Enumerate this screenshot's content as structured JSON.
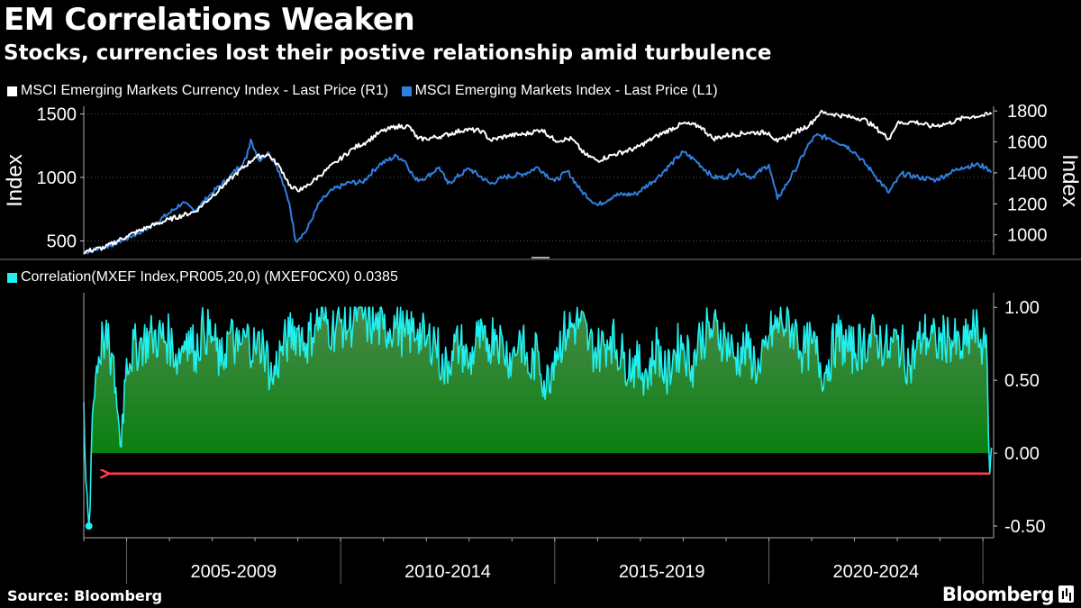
{
  "header": {
    "title": "EM Correlations Weaken",
    "subtitle": "Stocks, currencies lost their postive relationship amid turbulence"
  },
  "legend_top": [
    {
      "label": "MSCI Emerging Markets Currency Index - Last Price (R1)",
      "color": "#ffffff"
    },
    {
      "label": "MSCI Emerging Markets Index - Last Price (L1)",
      "color": "#2f7fe0"
    }
  ],
  "legend_bottom": [
    {
      "label": "Correlation(MXEF Index,PR005,20,0) (MXEF0CX0) 0.0385",
      "color": "#22f0f0"
    }
  ],
  "footer": {
    "source": "Source: Bloomberg",
    "brand": "Bloomberg"
  },
  "chart_data": [
    {
      "type": "line",
      "title": "",
      "x_unit": "year",
      "xlim": [
        2004,
        2025.25
      ],
      "y_left_label": "Index",
      "y_right_label": "Index",
      "y_left_ticks": [
        "500",
        "1000",
        "1500"
      ],
      "y_right_ticks": [
        "1000",
        "1200",
        "1400",
        "1600",
        "1800"
      ],
      "ylim_left": [
        390,
        1560
      ],
      "ylim_right": [
        870,
        1830
      ],
      "series": [
        {
          "name": "MSCI Emerging Markets Index - Last Price (L1)",
          "axis": "left",
          "color": "#2f7fe0",
          "points": [
            [
              2004.0,
              410
            ],
            [
              2004.5,
              450
            ],
            [
              2005.0,
              520
            ],
            [
              2005.5,
              600
            ],
            [
              2006.0,
              720
            ],
            [
              2006.3,
              800
            ],
            [
              2006.6,
              740
            ],
            [
              2007.0,
              880
            ],
            [
              2007.4,
              1000
            ],
            [
              2007.8,
              1150
            ],
            [
              2007.9,
              1300
            ],
            [
              2008.1,
              1130
            ],
            [
              2008.3,
              1200
            ],
            [
              2008.5,
              1100
            ],
            [
              2008.8,
              800
            ],
            [
              2008.95,
              500
            ],
            [
              2009.2,
              580
            ],
            [
              2009.5,
              800
            ],
            [
              2009.8,
              900
            ],
            [
              2010.2,
              960
            ],
            [
              2010.5,
              960
            ],
            [
              2010.9,
              1100
            ],
            [
              2011.3,
              1170
            ],
            [
              2011.5,
              1130
            ],
            [
              2011.75,
              980
            ],
            [
              2012.0,
              1000
            ],
            [
              2012.3,
              1080
            ],
            [
              2012.5,
              950
            ],
            [
              2013.0,
              1070
            ],
            [
              2013.5,
              950
            ],
            [
              2013.8,
              1000
            ],
            [
              2014.3,
              1030
            ],
            [
              2014.6,
              1080
            ],
            [
              2015.0,
              970
            ],
            [
              2015.3,
              1050
            ],
            [
              2015.6,
              900
            ],
            [
              2016.0,
              780
            ],
            [
              2016.4,
              860
            ],
            [
              2016.9,
              870
            ],
            [
              2017.4,
              1000
            ],
            [
              2018.0,
              1200
            ],
            [
              2018.3,
              1130
            ],
            [
              2018.7,
              1000
            ],
            [
              2019.0,
              1000
            ],
            [
              2019.3,
              1050
            ],
            [
              2019.6,
              1000
            ],
            [
              2020.0,
              1100
            ],
            [
              2020.2,
              830
            ],
            [
              2020.6,
              1050
            ],
            [
              2020.95,
              1270
            ],
            [
              2021.1,
              1330
            ],
            [
              2021.4,
              1310
            ],
            [
              2021.8,
              1250
            ],
            [
              2022.0,
              1200
            ],
            [
              2022.4,
              1050
            ],
            [
              2022.8,
              880
            ],
            [
              2023.1,
              1030
            ],
            [
              2023.5,
              1000
            ],
            [
              2023.9,
              980
            ],
            [
              2024.2,
              1030
            ],
            [
              2024.5,
              1080
            ],
            [
              2024.9,
              1100
            ],
            [
              2025.05,
              1080
            ],
            [
              2025.15,
              1060
            ],
            [
              2025.2,
              1040
            ]
          ]
        },
        {
          "name": "MSCI Emerging Markets Currency Index - Last Price (R1)",
          "axis": "right",
          "color": "#ffffff",
          "points": [
            [
              2004.0,
              890
            ],
            [
              2004.5,
              920
            ],
            [
              2005.0,
              990
            ],
            [
              2005.5,
              1050
            ],
            [
              2006.0,
              1100
            ],
            [
              2006.6,
              1150
            ],
            [
              2007.0,
              1250
            ],
            [
              2007.5,
              1380
            ],
            [
              2008.0,
              1500
            ],
            [
              2008.3,
              1520
            ],
            [
              2008.6,
              1430
            ],
            [
              2008.85,
              1300
            ],
            [
              2009.1,
              1290
            ],
            [
              2009.5,
              1380
            ],
            [
              2009.9,
              1470
            ],
            [
              2010.3,
              1560
            ],
            [
              2010.6,
              1600
            ],
            [
              2010.9,
              1660
            ],
            [
              2011.3,
              1700
            ],
            [
              2011.6,
              1700
            ],
            [
              2011.8,
              1620
            ],
            [
              2012.0,
              1620
            ],
            [
              2012.4,
              1640
            ],
            [
              2012.9,
              1680
            ],
            [
              2013.3,
              1670
            ],
            [
              2013.5,
              1610
            ],
            [
              2013.9,
              1640
            ],
            [
              2014.3,
              1650
            ],
            [
              2014.7,
              1680
            ],
            [
              2015.0,
              1610
            ],
            [
              2015.4,
              1620
            ],
            [
              2015.7,
              1520
            ],
            [
              2016.0,
              1480
            ],
            [
              2016.4,
              1520
            ],
            [
              2016.9,
              1560
            ],
            [
              2017.4,
              1640
            ],
            [
              2018.0,
              1720
            ],
            [
              2018.4,
              1700
            ],
            [
              2018.7,
              1620
            ],
            [
              2019.0,
              1640
            ],
            [
              2019.5,
              1660
            ],
            [
              2020.0,
              1660
            ],
            [
              2020.2,
              1600
            ],
            [
              2020.6,
              1660
            ],
            [
              2020.95,
              1710
            ],
            [
              2021.2,
              1790
            ],
            [
              2021.5,
              1780
            ],
            [
              2021.9,
              1760
            ],
            [
              2022.2,
              1750
            ],
            [
              2022.5,
              1690
            ],
            [
              2022.8,
              1620
            ],
            [
              2023.0,
              1720
            ],
            [
              2023.4,
              1730
            ],
            [
              2023.8,
              1700
            ],
            [
              2024.2,
              1720
            ],
            [
              2024.6,
              1760
            ],
            [
              2025.0,
              1770
            ],
            [
              2025.2,
              1780
            ]
          ]
        }
      ]
    },
    {
      "type": "area",
      "title": "",
      "xlim": [
        2004,
        2025.25
      ],
      "ylim": [
        -0.58,
        1.1
      ],
      "y_ticks": [
        "1.00",
        "0.50",
        "0.00",
        "-0.50"
      ],
      "x_tick_labels": [
        "2005-2009",
        "2010-2014",
        "2015-2019",
        "2020-2024"
      ],
      "grid": false,
      "series": [
        {
          "name": "Correlation(MXEF Index,PR005,20,0) (MXEF0CX0)",
          "last_value": 0.0385,
          "line_color": "#22f0f0",
          "fill_color": "#0a7a14",
          "points": [
            [
              2004.0,
              0.35
            ],
            [
              2004.05,
              -0.2
            ],
            [
              2004.12,
              -0.5
            ],
            [
              2004.2,
              0.25
            ],
            [
              2004.3,
              0.6
            ],
            [
              2004.45,
              0.8
            ],
            [
              2004.6,
              0.7
            ],
            [
              2004.75,
              0.45
            ],
            [
              2004.85,
              0.05
            ],
            [
              2005.0,
              0.65
            ],
            [
              2005.3,
              0.75
            ],
            [
              2005.6,
              0.8
            ],
            [
              2006.0,
              0.78
            ],
            [
              2006.2,
              0.65
            ],
            [
              2006.4,
              0.82
            ],
            [
              2006.6,
              0.7
            ],
            [
              2006.8,
              0.85
            ],
            [
              2007.0,
              0.8
            ],
            [
              2007.2,
              0.6
            ],
            [
              2007.4,
              0.82
            ],
            [
              2007.6,
              0.7
            ],
            [
              2007.8,
              0.8
            ],
            [
              2008.0,
              0.72
            ],
            [
              2008.2,
              0.75
            ],
            [
              2008.4,
              0.5
            ],
            [
              2008.6,
              0.7
            ],
            [
              2008.8,
              0.8
            ],
            [
              2009.0,
              0.85
            ],
            [
              2009.2,
              0.75
            ],
            [
              2009.4,
              0.88
            ],
            [
              2009.6,
              0.92
            ],
            [
              2009.8,
              0.85
            ],
            [
              2010.0,
              0.9
            ],
            [
              2010.2,
              0.86
            ],
            [
              2010.4,
              0.99
            ],
            [
              2010.6,
              0.9
            ],
            [
              2010.8,
              0.88
            ],
            [
              2011.0,
              0.85
            ],
            [
              2011.3,
              0.9
            ],
            [
              2011.5,
              0.8
            ],
            [
              2011.8,
              0.85
            ],
            [
              2012.0,
              0.75
            ],
            [
              2012.2,
              0.8
            ],
            [
              2012.4,
              0.55
            ],
            [
              2012.6,
              0.7
            ],
            [
              2012.8,
              0.75
            ],
            [
              2013.0,
              0.6
            ],
            [
              2013.2,
              0.8
            ],
            [
              2013.4,
              0.7
            ],
            [
              2013.6,
              0.85
            ],
            [
              2013.8,
              0.72
            ],
            [
              2014.0,
              0.65
            ],
            [
              2014.2,
              0.8
            ],
            [
              2014.4,
              0.55
            ],
            [
              2014.6,
              0.7
            ],
            [
              2014.8,
              0.45
            ],
            [
              2015.0,
              0.7
            ],
            [
              2015.3,
              0.85
            ],
            [
              2015.6,
              0.9
            ],
            [
              2015.8,
              0.75
            ],
            [
              2016.0,
              0.7
            ],
            [
              2016.3,
              0.8
            ],
            [
              2016.6,
              0.65
            ],
            [
              2016.9,
              0.6
            ],
            [
              2017.2,
              0.55
            ],
            [
              2017.4,
              0.75
            ],
            [
              2017.6,
              0.5
            ],
            [
              2017.8,
              0.7
            ],
            [
              2018.0,
              0.75
            ],
            [
              2018.2,
              0.6
            ],
            [
              2018.4,
              0.8
            ],
            [
              2018.7,
              0.85
            ],
            [
              2019.0,
              0.78
            ],
            [
              2019.2,
              0.65
            ],
            [
              2019.5,
              0.72
            ],
            [
              2019.8,
              0.55
            ],
            [
              2020.0,
              0.8
            ],
            [
              2020.3,
              0.9
            ],
            [
              2020.6,
              0.85
            ],
            [
              2020.8,
              0.7
            ],
            [
              2021.0,
              0.75
            ],
            [
              2021.3,
              0.55
            ],
            [
              2021.6,
              0.8
            ],
            [
              2021.9,
              0.7
            ],
            [
              2022.2,
              0.75
            ],
            [
              2022.5,
              0.8
            ],
            [
              2022.8,
              0.7
            ],
            [
              2023.0,
              0.78
            ],
            [
              2023.3,
              0.6
            ],
            [
              2023.6,
              0.82
            ],
            [
              2023.9,
              0.75
            ],
            [
              2024.2,
              0.8
            ],
            [
              2024.5,
              0.7
            ],
            [
              2024.8,
              0.85
            ],
            [
              2025.0,
              0.75
            ],
            [
              2025.1,
              0.6
            ],
            [
              2025.16,
              -0.14
            ],
            [
              2025.2,
              0.0385
            ]
          ]
        }
      ]
    }
  ]
}
